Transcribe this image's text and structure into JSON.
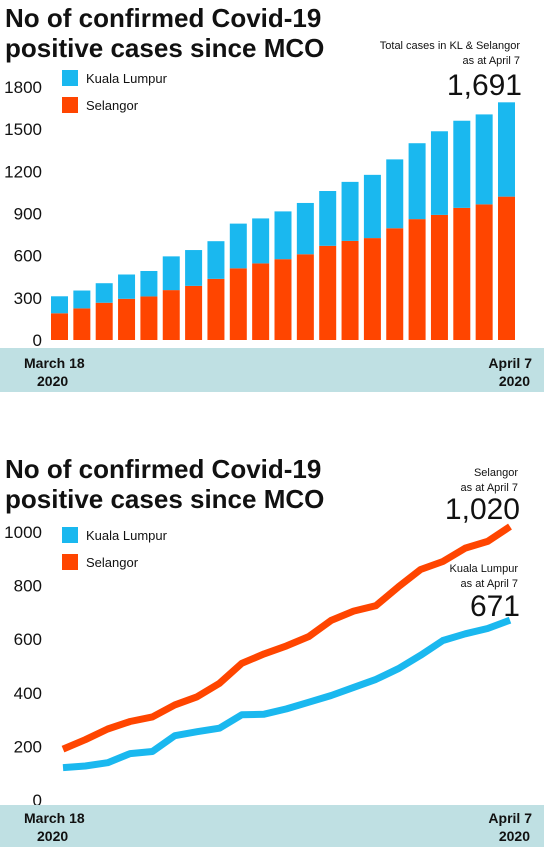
{
  "colors": {
    "kl": "#1ab8ef",
    "selangor": "#ff4500",
    "band": "#bfe0e3"
  },
  "chart_data": [
    {
      "type": "bar",
      "stacked": true,
      "title_lines": [
        "No of confirmed Covid-19",
        "positive cases since MCO"
      ],
      "ylim": [
        0,
        1800
      ],
      "yticks": [
        0,
        300,
        600,
        900,
        1200,
        1500,
        1800
      ],
      "grid": false,
      "legend_position": "top-left",
      "x_start_label": [
        "March 18",
        "2020"
      ],
      "x_end_label": [
        "April 7",
        "2020"
      ],
      "series": [
        {
          "name": "Kuala Lumpur",
          "color": "#1ab8ef",
          "values": [
            121,
            127,
            139,
            173,
            181,
            240,
            255,
            268,
            318,
            320,
            340,
            365,
            390,
            420,
            450,
            490,
            540,
            595,
            620,
            640,
            671
          ]
        },
        {
          "name": "Selangor",
          "color": "#ff4500",
          "values": [
            190,
            225,
            265,
            293,
            310,
            355,
            385,
            435,
            510,
            545,
            575,
            610,
            670,
            705,
            725,
            795,
            860,
            890,
            940,
            965,
            1020
          ]
        }
      ],
      "annotation": {
        "lines": [
          "Total cases in KL & Selangor",
          "as at April 7"
        ],
        "value": "1,691"
      }
    },
    {
      "type": "line",
      "title_lines": [
        "No of confirmed Covid-19",
        "positive cases since MCO"
      ],
      "ylim": [
        0,
        1000
      ],
      "yticks": [
        0,
        200,
        400,
        600,
        800,
        1000
      ],
      "grid": false,
      "legend_position": "top-left",
      "x_start_label": [
        "March 18",
        "2020"
      ],
      "x_end_label": [
        "April 7",
        "2020"
      ],
      "series": [
        {
          "name": "Kuala Lumpur",
          "color": "#1ab8ef",
          "values": [
            121,
            127,
            139,
            173,
            181,
            240,
            255,
            268,
            318,
            320,
            340,
            365,
            390,
            420,
            450,
            490,
            540,
            595,
            620,
            640,
            671
          ]
        },
        {
          "name": "Selangor",
          "color": "#ff4500",
          "values": [
            190,
            225,
            265,
            293,
            310,
            355,
            385,
            435,
            510,
            545,
            575,
            610,
            670,
            705,
            725,
            795,
            860,
            890,
            940,
            965,
            1020
          ]
        }
      ],
      "annotations": [
        {
          "series": "Selangor",
          "lines": [
            "Selangor",
            "as at April 7"
          ],
          "value": "1,020"
        },
        {
          "series": "Kuala Lumpur",
          "lines": [
            "Kuala Lumpur",
            "as at April 7"
          ],
          "value": "671"
        }
      ]
    }
  ]
}
